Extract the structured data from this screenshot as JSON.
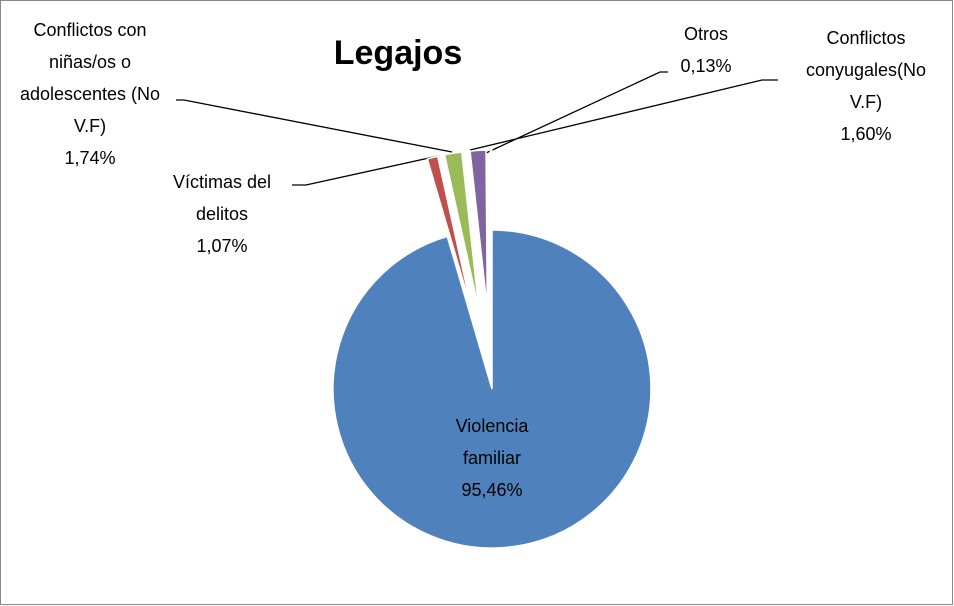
{
  "chart_data": {
    "type": "pie",
    "title": "Legajos",
    "categories": [
      "Violencia familiar",
      "Víctimas del delitos",
      "Conflictos con niñas/os o adolescentes (No V.F)",
      "Conflictos conyugales(No V.F)",
      "Otros"
    ],
    "values": [
      95.46,
      1.07,
      1.74,
      1.6,
      0.13
    ],
    "value_labels": [
      "95,46%",
      "1,07%",
      "1,74%",
      "1,60%",
      "0,13%"
    ],
    "colors": [
      "#4f81bd",
      "#c0504d",
      "#9bbb59",
      "#8064a2",
      "#4bacc6"
    ]
  }
}
